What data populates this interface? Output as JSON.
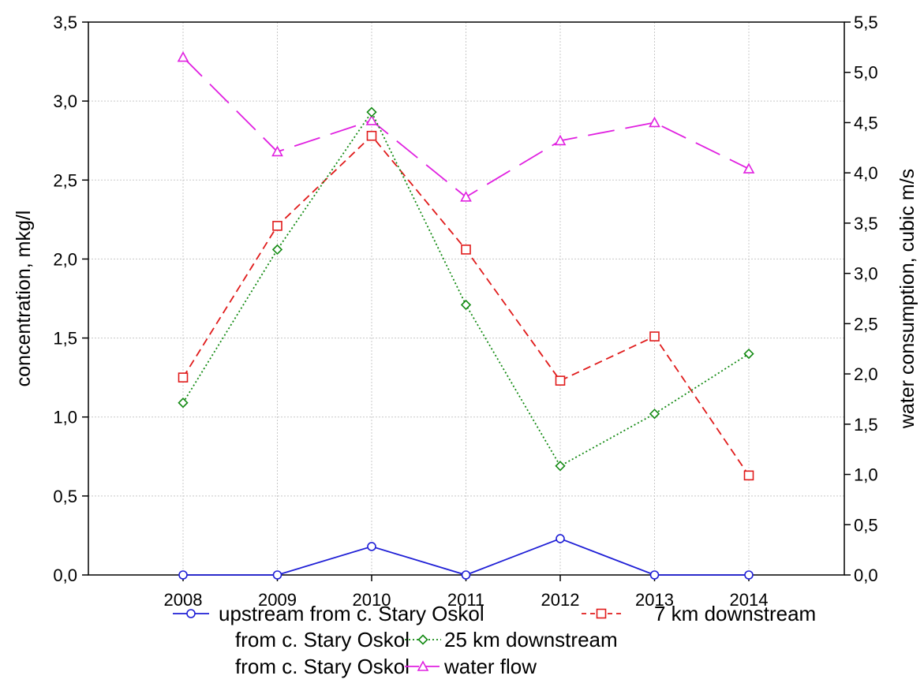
{
  "chart_data": {
    "type": "line",
    "x": [
      "2008",
      "2009",
      "2010",
      "2011",
      "2012",
      "2013",
      "2014"
    ],
    "ylabel": "concentration, mkg/l",
    "y2label": "water consumption, cubic m/s",
    "ylim": [
      0,
      3.5
    ],
    "y2lim": [
      0,
      5.5
    ],
    "y_ticks": [
      "0,0",
      "0,5",
      "1,0",
      "1,5",
      "2,0",
      "2,5",
      "3,0",
      "3,5"
    ],
    "y2_ticks": [
      "0,0",
      "0,5",
      "1,0",
      "1,5",
      "2,0",
      "2,5",
      "3,0",
      "3,5",
      "4,0",
      "4,5",
      "5,0",
      "5,5"
    ],
    "grid": true,
    "legend_position": "bottom",
    "series": [
      {
        "name": "upstream from c. Stary Oskol",
        "axis": "left",
        "color": "#1f1fd6",
        "marker": "circle",
        "line": "solid",
        "values": [
          0.0,
          0.0,
          0.18,
          0.0,
          0.23,
          0.0,
          0.0
        ]
      },
      {
        "name": "7 km downstream from c. Stary Oskol",
        "axis": "left",
        "color": "#e01b1b",
        "marker": "square",
        "line": "dashed",
        "values": [
          1.25,
          2.21,
          2.78,
          2.06,
          1.23,
          1.51,
          0.63
        ]
      },
      {
        "name": "25 km downstream from c. Stary Oskol",
        "axis": "left",
        "color": "#138a13",
        "marker": "diamond",
        "line": "dotted",
        "values": [
          1.09,
          2.06,
          2.93,
          1.71,
          0.69,
          1.02,
          1.4
        ]
      },
      {
        "name": "water flow",
        "axis": "right",
        "color": "#e020e0",
        "marker": "triangle",
        "line": "longdash",
        "values": [
          5.15,
          4.21,
          4.52,
          3.76,
          4.32,
          4.5,
          4.04
        ]
      }
    ],
    "legend_lines": [
      {
        "pre": "",
        "sample": 0,
        "text": "upstream from c. Stary Oskol",
        "sample2": 1,
        "text2": "7 km downstream"
      },
      {
        "pre": "from c. Stary Oskol",
        "sample": 2,
        "text": "25 km downstream",
        "sample2": null,
        "text2": ""
      },
      {
        "pre": "from c. Stary Oskol",
        "sample": 3,
        "text": "water flow",
        "sample2": null,
        "text2": ""
      }
    ]
  }
}
